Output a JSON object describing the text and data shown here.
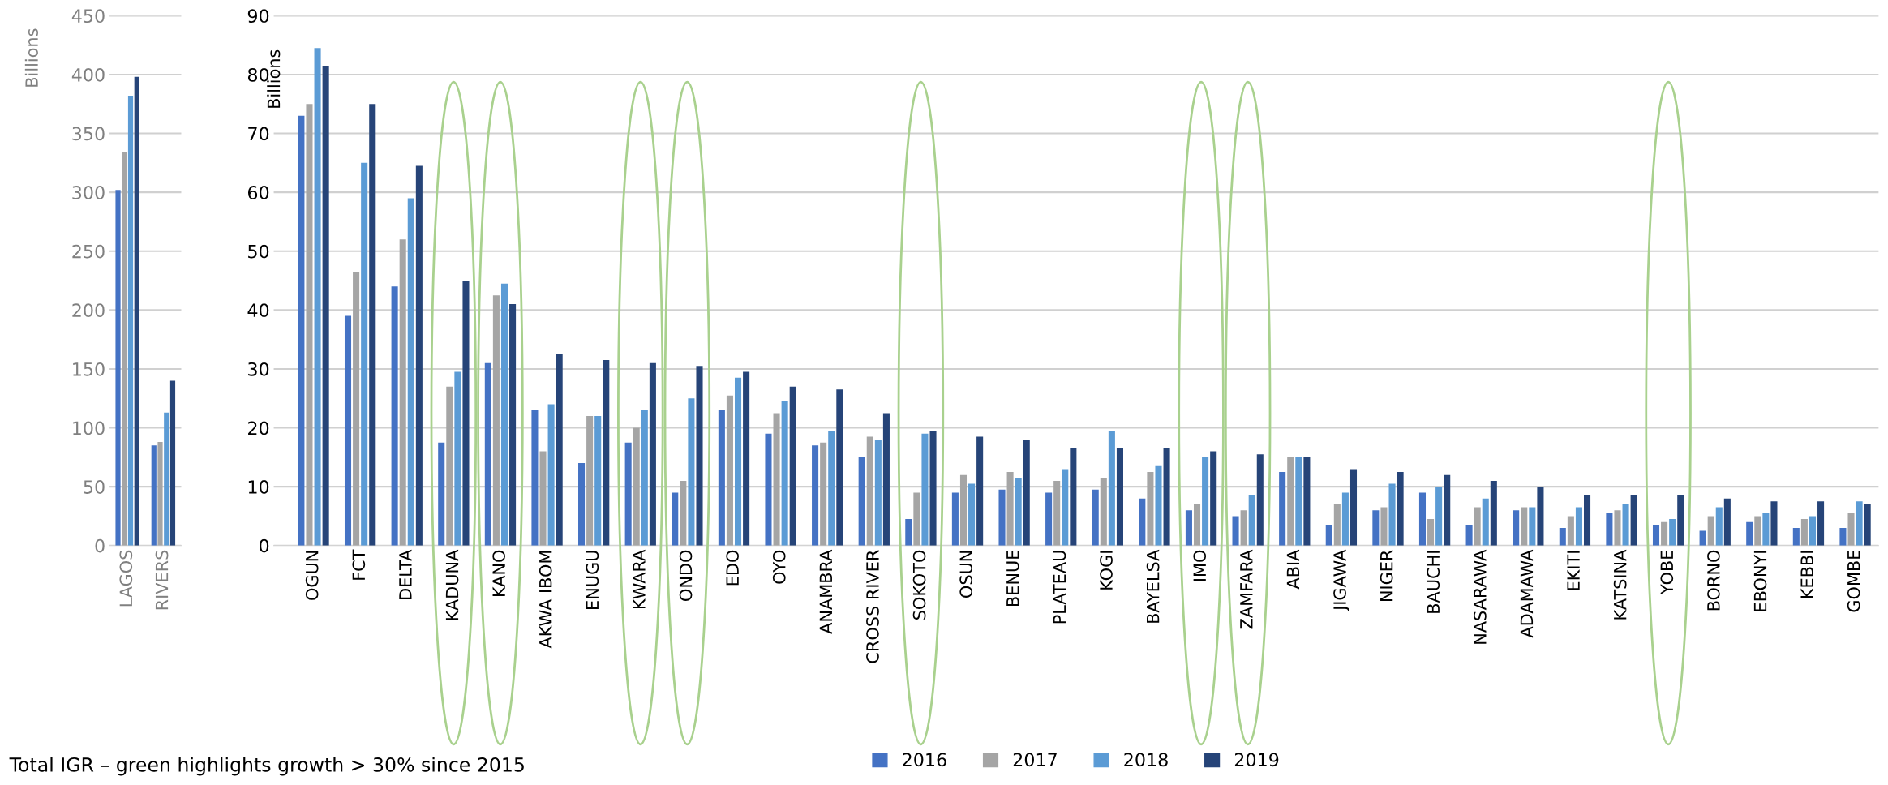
{
  "chart_data": [
    {
      "type": "bar",
      "ylabel": "Billions",
      "categories": [
        "LAGOS",
        "RIVERS"
      ],
      "ylim": [
        0,
        450
      ],
      "yticks": [
        0,
        50,
        100,
        150,
        200,
        250,
        300,
        350,
        400,
        450
      ],
      "grid": "y",
      "legend": false,
      "series": [
        {
          "color": "#4472c4",
          "values": [
            302,
            85
          ]
        },
        {
          "color": "#a5a5a5",
          "values": [
            334,
            88
          ]
        },
        {
          "color": "#5b9bd5",
          "values": [
            382,
            113
          ]
        },
        {
          "color": "#264478",
          "values": [
            398,
            140
          ]
        }
      ]
    },
    {
      "type": "bar",
      "ylabel": "Billions",
      "categories": [
        "OGUN",
        "FCT",
        "DELTA",
        "KADUNA",
        "KANO",
        "AKWA IBOM",
        "ENUGU",
        "KWARA",
        "ONDO",
        "EDO",
        "OYO",
        "ANAMBRA",
        "CROSS RIVER",
        "SOKOTO",
        "OSUN",
        "BENUE",
        "PLATEAU",
        "KOGI",
        "BAYELSA",
        "IMO",
        "ZAMFARA",
        "ABIA",
        "JIGAWA",
        "NIGER",
        "BAUCHI",
        "NASARAWA",
        "ADAMAWA",
        "EKITI",
        "KATSINA",
        "YOBE",
        "BORNO",
        "EBONYI",
        "KEBBI",
        "GOMBE"
      ],
      "ylim": [
        0,
        90
      ],
      "yticks": [
        0,
        10,
        20,
        30,
        40,
        50,
        60,
        70,
        80,
        90
      ],
      "grid": "y",
      "legend": "bottom",
      "series": [
        {
          "name": "2016",
          "color": "#4472c4",
          "values": [
            73,
            39,
            44,
            17.5,
            31,
            23,
            14,
            17.5,
            9,
            23,
            19,
            17,
            15,
            4.5,
            9,
            9.5,
            9,
            9.5,
            8,
            6,
            5,
            12.5,
            3.5,
            6,
            9,
            3.5,
            6,
            3,
            5.5,
            3.5,
            2.5,
            4,
            3,
            3
          ]
        },
        {
          "name": "2017",
          "color": "#a5a5a5",
          "values": [
            75,
            46.5,
            52,
            27,
            42.5,
            16,
            22,
            20,
            11,
            25.5,
            22.5,
            17.5,
            18.5,
            9,
            12,
            12.5,
            11,
            11.5,
            12.5,
            7,
            6,
            15,
            7,
            6.5,
            4.5,
            6.5,
            6.5,
            5,
            6,
            4,
            5,
            5,
            4.5,
            5.5
          ]
        },
        {
          "name": "2018",
          "color": "#5b9bd5",
          "values": [
            84.5,
            65,
            59,
            29.5,
            44.5,
            24,
            22,
            23,
            25,
            28.5,
            24.5,
            19.5,
            18,
            19,
            10.5,
            11.5,
            13,
            19.5,
            13.5,
            15,
            8.5,
            15,
            9,
            10.5,
            10,
            8,
            6.5,
            6.5,
            7,
            4.5,
            6.5,
            5.5,
            5,
            7.5
          ]
        },
        {
          "name": "2019",
          "color": "#264478",
          "values": [
            81.5,
            75,
            64.5,
            45,
            41,
            32.5,
            31.5,
            31,
            30.5,
            29.5,
            27,
            26.5,
            22.5,
            19.5,
            18.5,
            18,
            16.5,
            16.5,
            16.5,
            16,
            15.5,
            15,
            13,
            12.5,
            12,
            11,
            10,
            8.5,
            8.5,
            8.5,
            8,
            7.5,
            7.5,
            7
          ]
        }
      ],
      "annotations": [
        "Total IGR – green highlights growth > 30% since 2015"
      ]
    }
  ]
}
